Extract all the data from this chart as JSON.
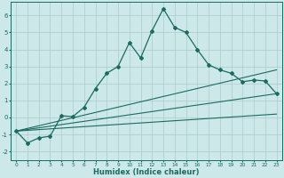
{
  "xlabel": "Humidex (Indice chaleur)",
  "ylabel": "",
  "background_color": "#cce8e8",
  "grid_color": "#aacccc",
  "line_color": "#1a6b60",
  "xlim": [
    -0.5,
    23.5
  ],
  "ylim": [
    -2.5,
    6.8
  ],
  "yticks": [
    -2,
    -1,
    0,
    1,
    2,
    3,
    4,
    5,
    6
  ],
  "xticks": [
    0,
    1,
    2,
    3,
    4,
    5,
    6,
    7,
    8,
    9,
    10,
    11,
    12,
    13,
    14,
    15,
    16,
    17,
    18,
    19,
    20,
    21,
    22,
    23
  ],
  "line1_x": [
    0,
    1,
    2,
    3,
    4,
    5,
    6,
    7,
    8,
    9,
    10,
    11,
    12,
    13,
    14,
    15,
    16,
    17,
    18,
    19,
    20,
    21,
    22,
    23
  ],
  "line1_y": [
    -0.8,
    -1.5,
    -1.2,
    -1.1,
    0.1,
    0.05,
    0.6,
    1.7,
    2.6,
    3.0,
    4.4,
    3.5,
    5.1,
    6.4,
    5.3,
    5.0,
    4.0,
    3.1,
    2.8,
    2.6,
    2.1,
    2.2,
    2.15,
    1.4
  ],
  "line2_x": [
    0,
    23
  ],
  "line2_y": [
    -0.8,
    2.8
  ],
  "line3_x": [
    0,
    23
  ],
  "line3_y": [
    -0.8,
    1.4
  ],
  "line4_x": [
    0,
    23
  ],
  "line4_y": [
    -0.8,
    0.2
  ]
}
